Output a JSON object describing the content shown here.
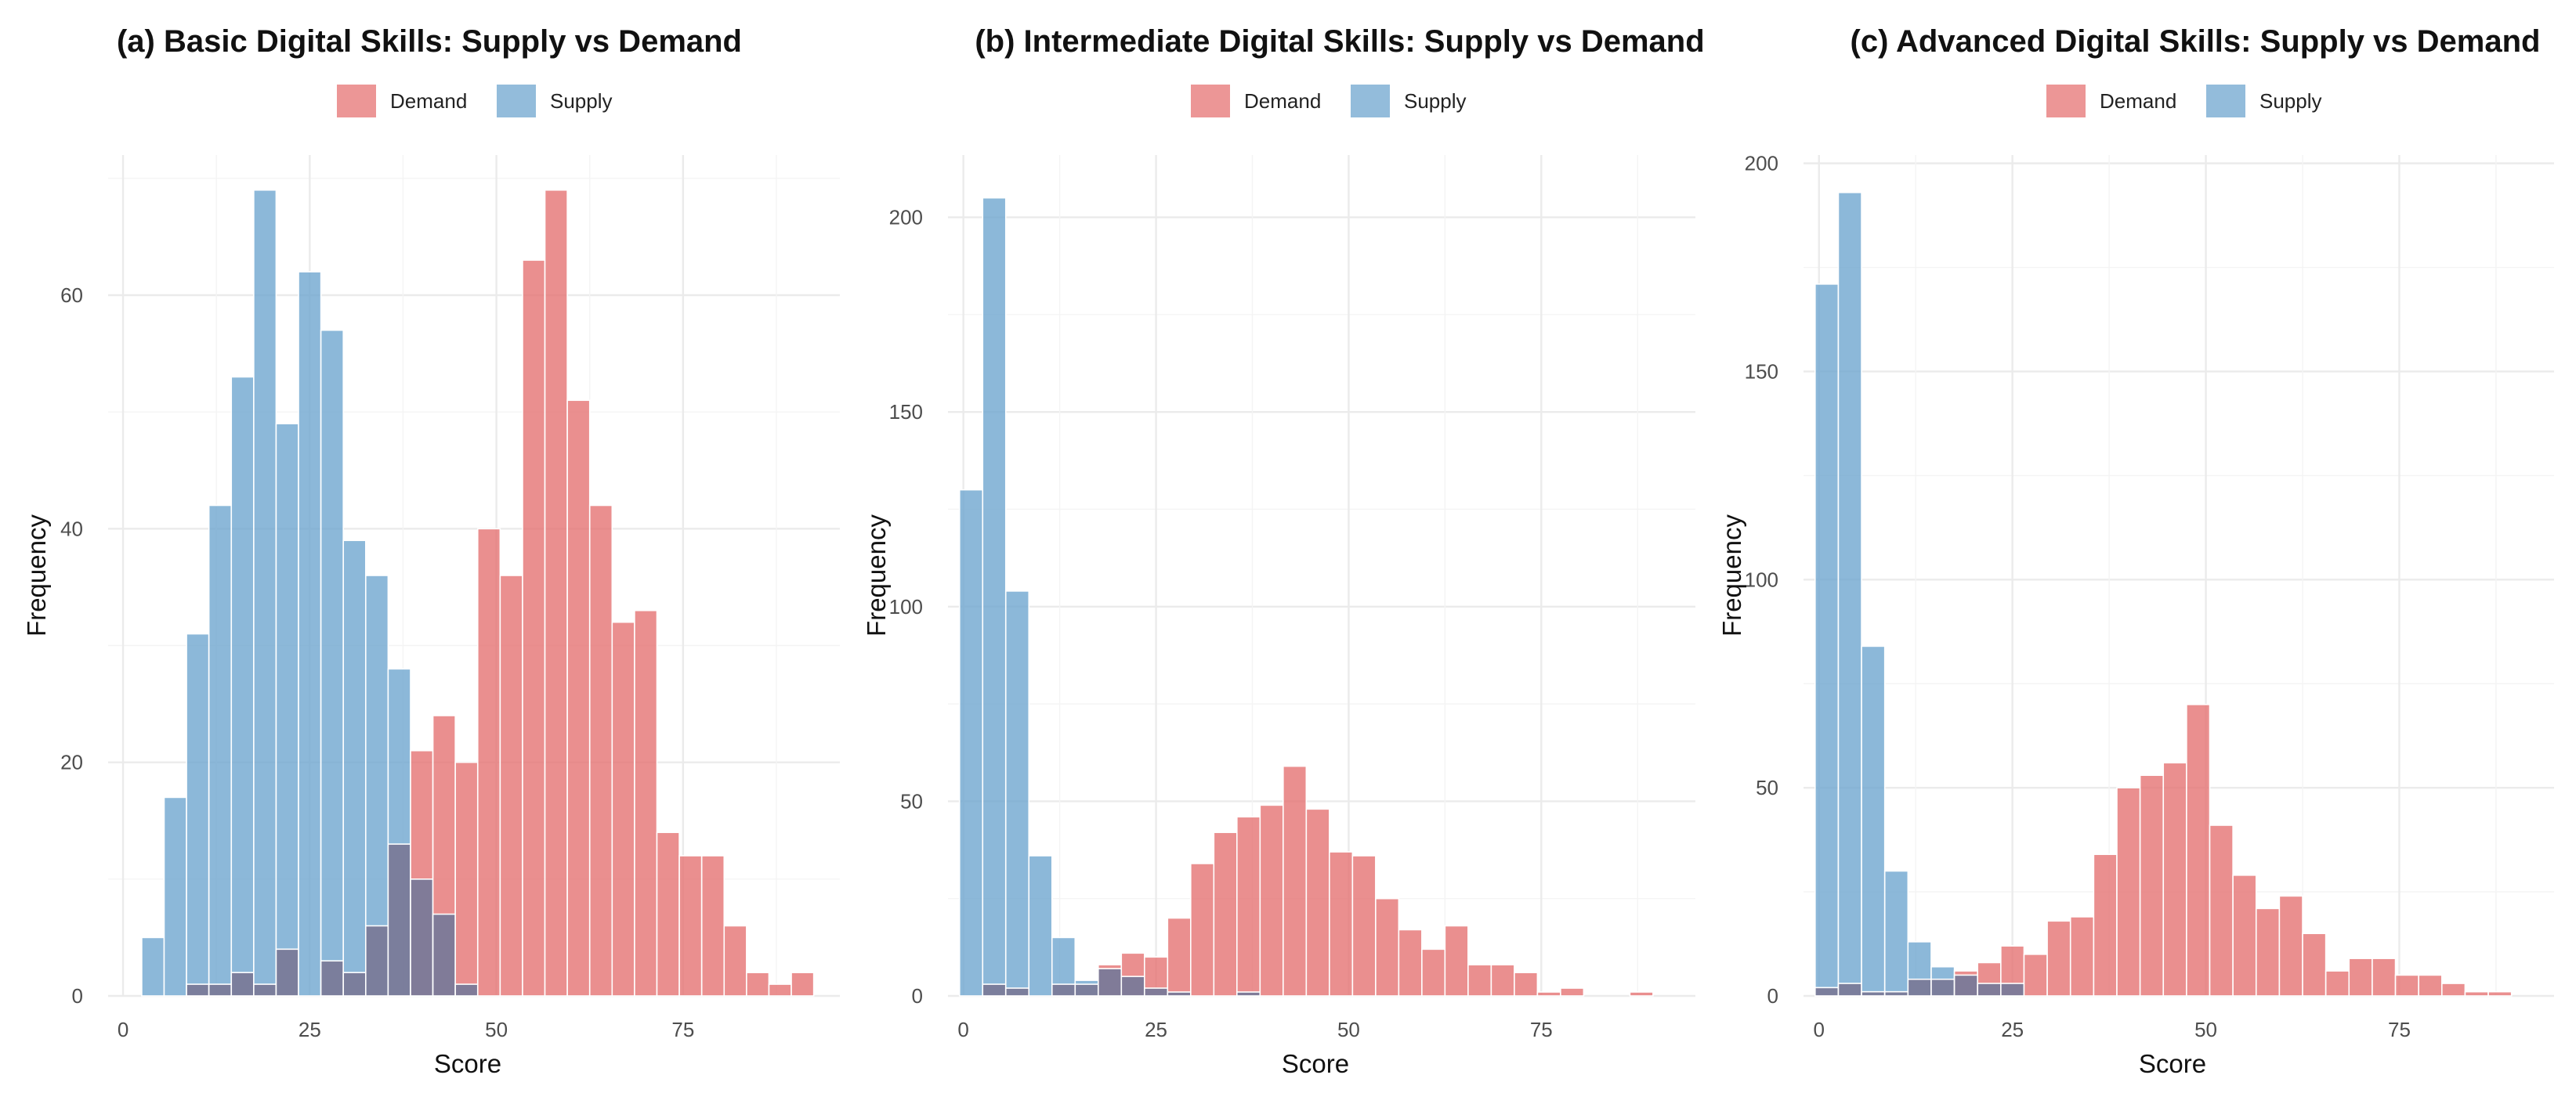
{
  "colors": {
    "demand": "#e57373",
    "supply": "#6fa6cf",
    "overlap": "#7a7a99"
  },
  "chart_data": [
    {
      "type": "bar",
      "title": "(a) Basic Digital Skills: Supply vs Demand",
      "xlabel": "Score",
      "ylabel": "Frequency",
      "xlim": [
        -2,
        96
      ],
      "ylim": [
        0,
        72
      ],
      "xticks": [
        0,
        25,
        50,
        75
      ],
      "yticks": [
        0,
        20,
        40,
        60
      ],
      "legend": [
        "Demand",
        "Supply"
      ],
      "legend_position": "top",
      "bin_start": 2.5,
      "bin_width": 3,
      "series": [
        {
          "name": "Supply",
          "values": [
            5,
            17,
            31,
            42,
            53,
            69,
            49,
            62,
            57,
            39,
            36,
            28,
            10,
            7,
            1,
            0,
            0,
            0,
            0,
            0,
            0,
            0,
            0,
            0,
            0,
            0,
            0,
            0,
            0,
            0
          ]
        },
        {
          "name": "Demand",
          "values": [
            0,
            0,
            1,
            1,
            2,
            1,
            4,
            0,
            3,
            2,
            6,
            13,
            21,
            24,
            20,
            40,
            36,
            63,
            69,
            51,
            42,
            32,
            33,
            14,
            12,
            12,
            6,
            2,
            1,
            2
          ]
        }
      ]
    },
    {
      "type": "bar",
      "title": "(b) Intermediate Digital Skills: Supply vs Demand",
      "xlabel": "Score",
      "ylabel": "Frequency",
      "xlim": [
        -2,
        95
      ],
      "ylim": [
        0,
        216
      ],
      "xticks": [
        0,
        25,
        50,
        75
      ],
      "yticks": [
        0,
        50,
        100,
        150,
        200
      ],
      "legend": [
        "Demand",
        "Supply"
      ],
      "legend_position": "top",
      "bin_start": -0.5,
      "bin_width": 3,
      "series": [
        {
          "name": "Supply",
          "values": [
            130,
            205,
            104,
            36,
            15,
            4,
            7,
            5,
            2,
            1,
            0,
            0,
            1,
            0,
            0,
            0,
            0,
            0,
            0,
            0,
            0,
            0,
            0,
            0,
            0,
            0,
            0,
            0,
            0,
            0
          ]
        },
        {
          "name": "Demand",
          "values": [
            0,
            3,
            2,
            0,
            3,
            3,
            8,
            11,
            10,
            20,
            34,
            42,
            46,
            49,
            59,
            48,
            37,
            36,
            25,
            17,
            12,
            18,
            8,
            8,
            6,
            1,
            2,
            0,
            0,
            1
          ]
        }
      ]
    },
    {
      "type": "bar",
      "title": "(c) Advanced Digital Skills: Supply vs Demand",
      "xlabel": "Score",
      "ylabel": "Frequency",
      "xlim": [
        -2,
        95
      ],
      "ylim": [
        0,
        202
      ],
      "xticks": [
        0,
        25,
        50,
        75
      ],
      "yticks": [
        0,
        50,
        100,
        150,
        200
      ],
      "legend": [
        "Demand",
        "Supply"
      ],
      "legend_position": "top",
      "bin_start": -0.5,
      "bin_width": 3,
      "series": [
        {
          "name": "Supply",
          "values": [
            171,
            193,
            84,
            30,
            13,
            7,
            5,
            3,
            3,
            0,
            0,
            0,
            0,
            0,
            0,
            0,
            0,
            0,
            0,
            0,
            0,
            0,
            0,
            0,
            0,
            0,
            0,
            0,
            0,
            0
          ]
        },
        {
          "name": "Demand",
          "values": [
            2,
            3,
            1,
            1,
            4,
            4,
            6,
            8,
            12,
            10,
            18,
            19,
            34,
            50,
            53,
            56,
            70,
            41,
            29,
            21,
            24,
            15,
            6,
            9,
            9,
            5,
            5,
            3,
            1,
            1
          ]
        }
      ]
    }
  ]
}
